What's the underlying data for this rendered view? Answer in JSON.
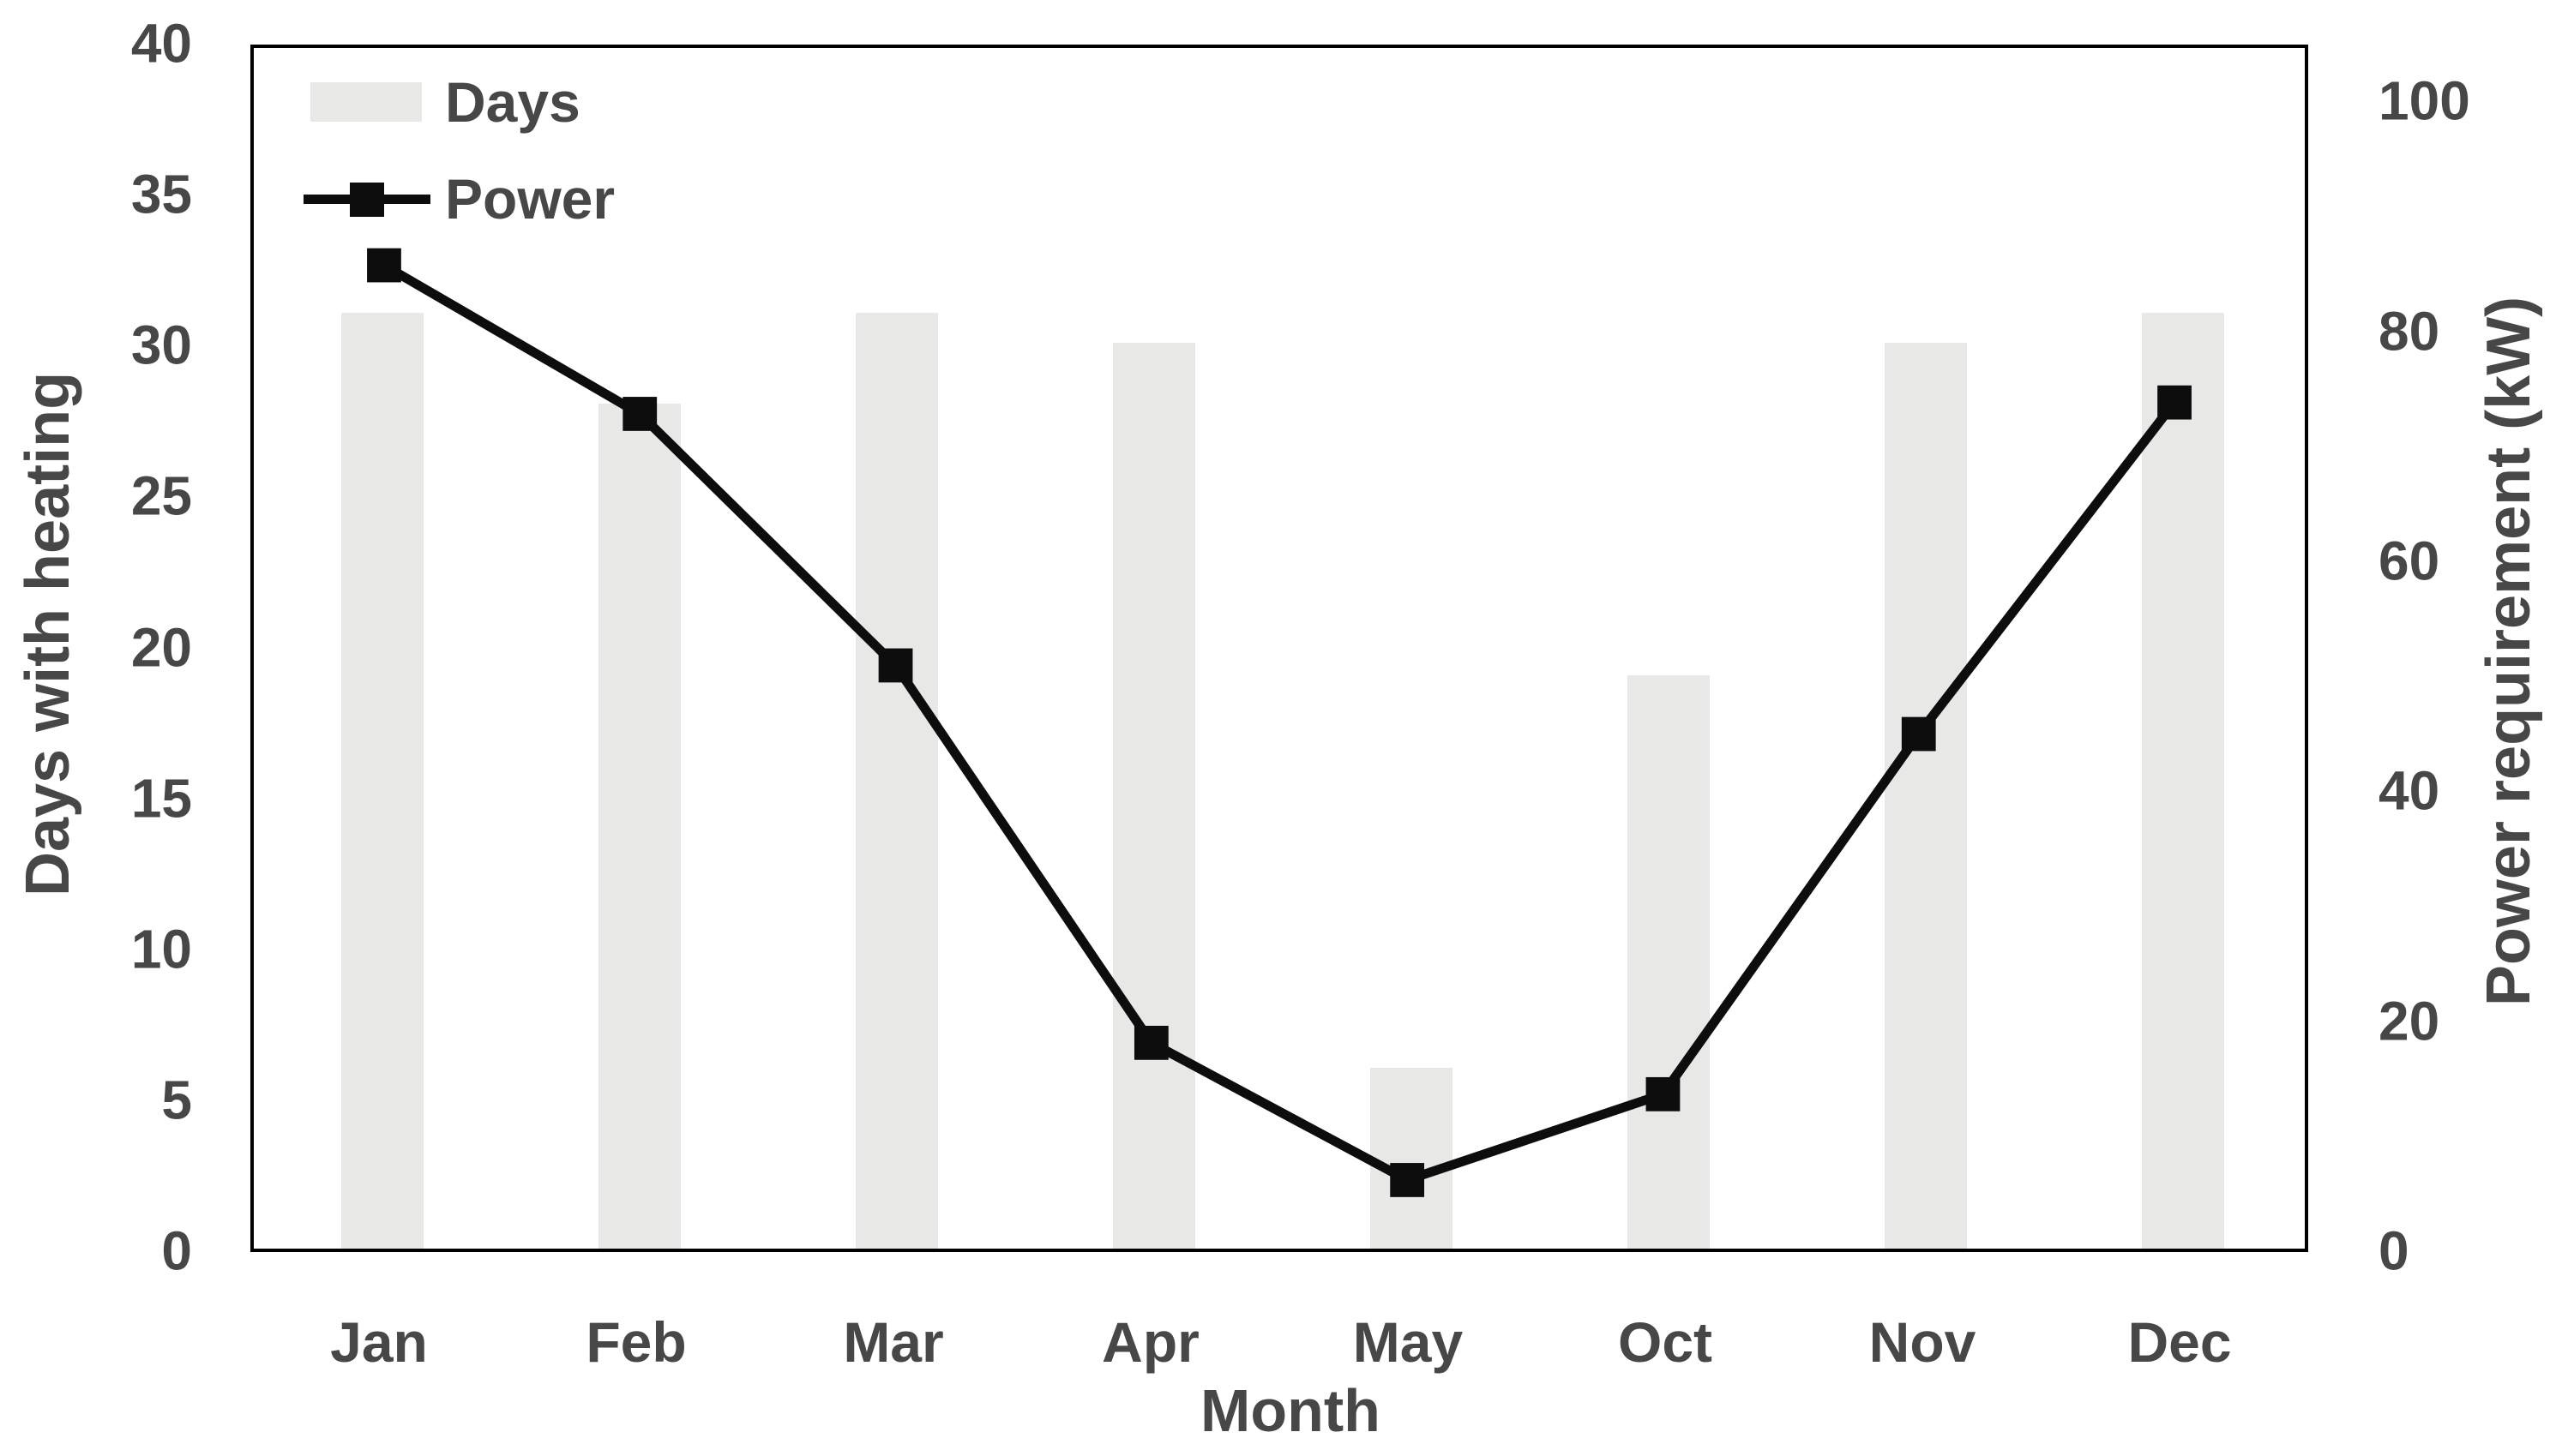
{
  "chart_data": {
    "type": "bar",
    "subtype": "bar-line-combo-dual-axis",
    "title": "",
    "categories": [
      "Jan",
      "Feb",
      "Mar",
      "Apr",
      "May",
      "Oct",
      "Nov",
      "Dec"
    ],
    "series": [
      {
        "name": "Days",
        "type": "bar",
        "axis": "left",
        "values": [
          31,
          28,
          31,
          30,
          6,
          19,
          30,
          31
        ]
      },
      {
        "name": "Power",
        "type": "line",
        "axis": "right",
        "values": [
          86,
          73,
          51,
          18,
          6,
          13.5,
          45,
          74
        ]
      }
    ],
    "left_axis": {
      "label": "Days with heating",
      "range": [
        0,
        40
      ],
      "ticks": [
        0,
        5,
        10,
        15,
        20,
        25,
        30,
        35,
        40
      ]
    },
    "right_axis": {
      "label": "Power requirement (kW)",
      "range": [
        0,
        105
      ],
      "ticks": [
        0,
        20,
        40,
        60,
        80,
        100
      ]
    },
    "x_axis": {
      "label": "Month"
    },
    "legend": {
      "position": "top-left-inside",
      "entries": [
        "Days",
        "Power"
      ]
    },
    "grid": false,
    "colors": {
      "bar": "#e8e8e6",
      "line": "#0d0d0d",
      "text": "#474747",
      "border": "#000000",
      "background": "#ffffff"
    }
  }
}
